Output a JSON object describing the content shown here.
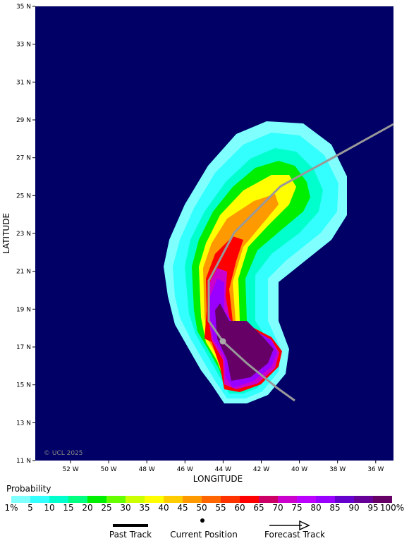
{
  "map": {
    "lat_labels": [
      "35 N",
      "33 N",
      "31 N",
      "29 N",
      "27 N",
      "25 N",
      "23 N",
      "21 N",
      "19 N",
      "17 N",
      "15 N",
      "13 N",
      "11 N"
    ],
    "lon_labels": [
      "52 W",
      "50 W",
      "48 W",
      "46 W",
      "44 W",
      "42 W",
      "40 W",
      "38 W",
      "36 W"
    ],
    "x_axis_label": "LONGITUDE",
    "y_axis_label": "LATITUDE",
    "copyright": "© UCL 2025",
    "background": "#000066"
  },
  "legend": {
    "title": "Probability",
    "labels": [
      "1%",
      "5",
      "10",
      "15",
      "20",
      "25",
      "30",
      "35",
      "40",
      "45",
      "50",
      "55",
      "60",
      "65",
      "70",
      "75",
      "80",
      "85",
      "90",
      "95",
      "100%"
    ],
    "colors": [
      "#80ffff",
      "#33ffff",
      "#00ffcc",
      "#00ff80",
      "#00ee00",
      "#66ff00",
      "#ccff00",
      "#ffff00",
      "#ffcc00",
      "#ff9900",
      "#ff6600",
      "#ff3300",
      "#ff0000",
      "#cc0066",
      "#cc00cc",
      "#bb00ff",
      "#9900ff",
      "#6600cc",
      "#660099",
      "#660066"
    ]
  },
  "key": {
    "past": "Past Track",
    "current": "Current Position",
    "forecast": "Forecast Track"
  }
}
